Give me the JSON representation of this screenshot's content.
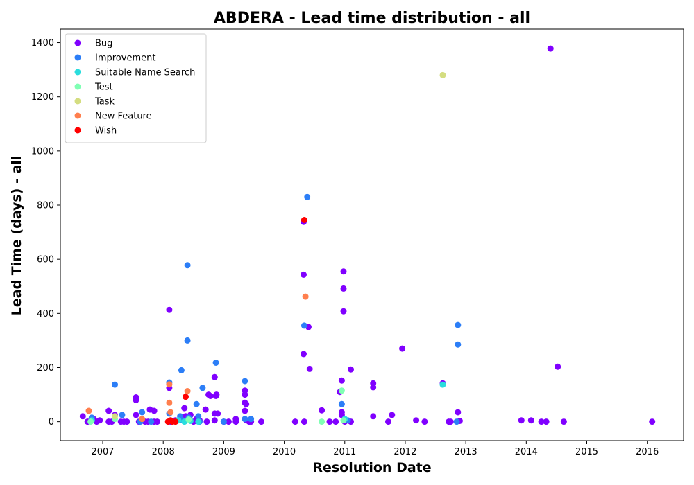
{
  "chart_data": {
    "type": "scatter",
    "title": "ABDERA - Lead time distribution - all",
    "xlabel": "Resolution Date",
    "ylabel": "Lead Time (days) - all",
    "xlim": [
      2006.3,
      2016.6
    ],
    "ylim": [
      -70,
      1450
    ],
    "x_ticks": [
      2007,
      2008,
      2009,
      2010,
      2011,
      2012,
      2013,
      2014,
      2015,
      2016
    ],
    "y_ticks": [
      0,
      200,
      400,
      600,
      800,
      1000,
      1200,
      1400
    ],
    "grid": false,
    "legend_position": "top-left",
    "series": [
      {
        "name": "Bug",
        "color": "#8000ff",
        "points": [
          [
            2006.67,
            20
          ],
          [
            2006.75,
            0
          ],
          [
            2006.85,
            10
          ],
          [
            2006.9,
            0
          ],
          [
            2006.95,
            5
          ],
          [
            2007.1,
            40
          ],
          [
            2007.1,
            0
          ],
          [
            2007.15,
            0
          ],
          [
            2007.2,
            25
          ],
          [
            2007.3,
            0
          ],
          [
            2007.35,
            0
          ],
          [
            2007.4,
            0
          ],
          [
            2007.55,
            80
          ],
          [
            2007.55,
            90
          ],
          [
            2007.55,
            25
          ],
          [
            2007.6,
            0
          ],
          [
            2007.65,
            5
          ],
          [
            2007.7,
            0
          ],
          [
            2007.75,
            0
          ],
          [
            2007.78,
            45
          ],
          [
            2007.85,
            40
          ],
          [
            2007.85,
            0
          ],
          [
            2007.9,
            0
          ],
          [
            2008.1,
            413
          ],
          [
            2008.1,
            125
          ],
          [
            2008.12,
            0
          ],
          [
            2008.2,
            5
          ],
          [
            2008.3,
            10
          ],
          [
            2008.35,
            50
          ],
          [
            2008.37,
            20
          ],
          [
            2008.45,
            25
          ],
          [
            2008.5,
            0
          ],
          [
            2008.55,
            10
          ],
          [
            2008.6,
            5
          ],
          [
            2008.7,
            45
          ],
          [
            2008.72,
            0
          ],
          [
            2008.75,
            100
          ],
          [
            2008.78,
            95
          ],
          [
            2008.85,
            165
          ],
          [
            2008.87,
            95
          ],
          [
            2008.88,
            100
          ],
          [
            2008.85,
            30
          ],
          [
            2008.9,
            30
          ],
          [
            2008.85,
            5
          ],
          [
            2009.0,
            0
          ],
          [
            2009.08,
            0
          ],
          [
            2009.2,
            10
          ],
          [
            2009.2,
            0
          ],
          [
            2009.35,
            115
          ],
          [
            2009.35,
            100
          ],
          [
            2009.35,
            70
          ],
          [
            2009.37,
            65
          ],
          [
            2009.35,
            40
          ],
          [
            2009.37,
            5
          ],
          [
            2009.42,
            0
          ],
          [
            2009.45,
            0
          ],
          [
            2009.62,
            0
          ],
          [
            2010.18,
            0
          ],
          [
            2010.32,
            738
          ],
          [
            2010.32,
            543
          ],
          [
            2010.32,
            250
          ],
          [
            2010.33,
            0
          ],
          [
            2010.4,
            350
          ],
          [
            2010.42,
            195
          ],
          [
            2010.62,
            42
          ],
          [
            2010.75,
            0
          ],
          [
            2010.85,
            0
          ],
          [
            2010.92,
            110
          ],
          [
            2010.95,
            152
          ],
          [
            2010.95,
            35
          ],
          [
            2010.95,
            25
          ],
          [
            2010.98,
            555
          ],
          [
            2010.98,
            492
          ],
          [
            2010.98,
            408
          ],
          [
            2011.0,
            0
          ],
          [
            2011.1,
            193
          ],
          [
            2011.1,
            0
          ],
          [
            2011.47,
            142
          ],
          [
            2011.47,
            127
          ],
          [
            2011.47,
            20
          ],
          [
            2011.72,
            0
          ],
          [
            2011.78,
            25
          ],
          [
            2011.95,
            270
          ],
          [
            2012.18,
            5
          ],
          [
            2012.32,
            0
          ],
          [
            2012.62,
            142
          ],
          [
            2012.72,
            0
          ],
          [
            2012.75,
            0
          ],
          [
            2012.87,
            35
          ],
          [
            2012.9,
            3
          ],
          [
            2013.92,
            5
          ],
          [
            2014.08,
            5
          ],
          [
            2014.25,
            0
          ],
          [
            2014.33,
            0
          ],
          [
            2014.4,
            1378
          ],
          [
            2014.52,
            203
          ],
          [
            2014.62,
            0
          ],
          [
            2016.08,
            0
          ]
        ]
      },
      {
        "name": "Improvement",
        "color": "#2c7ef7",
        "points": [
          [
            2006.82,
            15
          ],
          [
            2007.2,
            137
          ],
          [
            2007.32,
            25
          ],
          [
            2007.62,
            0
          ],
          [
            2007.65,
            35
          ],
          [
            2007.8,
            0
          ],
          [
            2008.1,
            145
          ],
          [
            2008.1,
            30
          ],
          [
            2008.3,
            190
          ],
          [
            2008.28,
            20
          ],
          [
            2008.32,
            5
          ],
          [
            2008.4,
            578
          ],
          [
            2008.4,
            300
          ],
          [
            2008.42,
            15
          ],
          [
            2008.55,
            65
          ],
          [
            2008.58,
            20
          ],
          [
            2008.6,
            0
          ],
          [
            2008.65,
            125
          ],
          [
            2008.87,
            218
          ],
          [
            2009.0,
            0
          ],
          [
            2009.35,
            150
          ],
          [
            2009.35,
            10
          ],
          [
            2009.45,
            10
          ],
          [
            2010.33,
            355
          ],
          [
            2010.38,
            830
          ],
          [
            2010.95,
            65
          ],
          [
            2011.05,
            5
          ],
          [
            2012.87,
            357
          ],
          [
            2012.87,
            285
          ],
          [
            2012.85,
            0
          ]
        ]
      },
      {
        "name": "Suitable Name Search",
        "color": "#2adddd",
        "points": [
          [
            2006.82,
            5
          ],
          [
            2008.25,
            5
          ],
          [
            2008.35,
            0
          ],
          [
            2008.45,
            3
          ],
          [
            2008.58,
            0
          ],
          [
            2011.0,
            10
          ],
          [
            2012.62,
            137
          ]
        ]
      },
      {
        "name": "Test",
        "color": "#80ffb4",
        "points": [
          [
            2006.8,
            0
          ],
          [
            2007.2,
            10
          ],
          [
            2008.42,
            8
          ],
          [
            2010.62,
            0
          ],
          [
            2010.95,
            115
          ],
          [
            2010.98,
            5
          ]
        ]
      },
      {
        "name": "Task",
        "color": "#d4dd80",
        "points": [
          [
            2007.2,
            20
          ],
          [
            2012.62,
            1280
          ]
        ]
      },
      {
        "name": "New Feature",
        "color": "#ff7f4e",
        "points": [
          [
            2006.77,
            40
          ],
          [
            2007.65,
            10
          ],
          [
            2008.1,
            138
          ],
          [
            2008.1,
            70
          ],
          [
            2008.12,
            35
          ],
          [
            2008.4,
            113
          ],
          [
            2010.35,
            462
          ]
        ]
      },
      {
        "name": "Wish",
        "color": "#ff0000",
        "points": [
          [
            2008.08,
            0
          ],
          [
            2008.12,
            5
          ],
          [
            2008.15,
            0
          ],
          [
            2008.2,
            0
          ],
          [
            2008.37,
            92
          ],
          [
            2010.33,
            745
          ]
        ]
      }
    ]
  }
}
